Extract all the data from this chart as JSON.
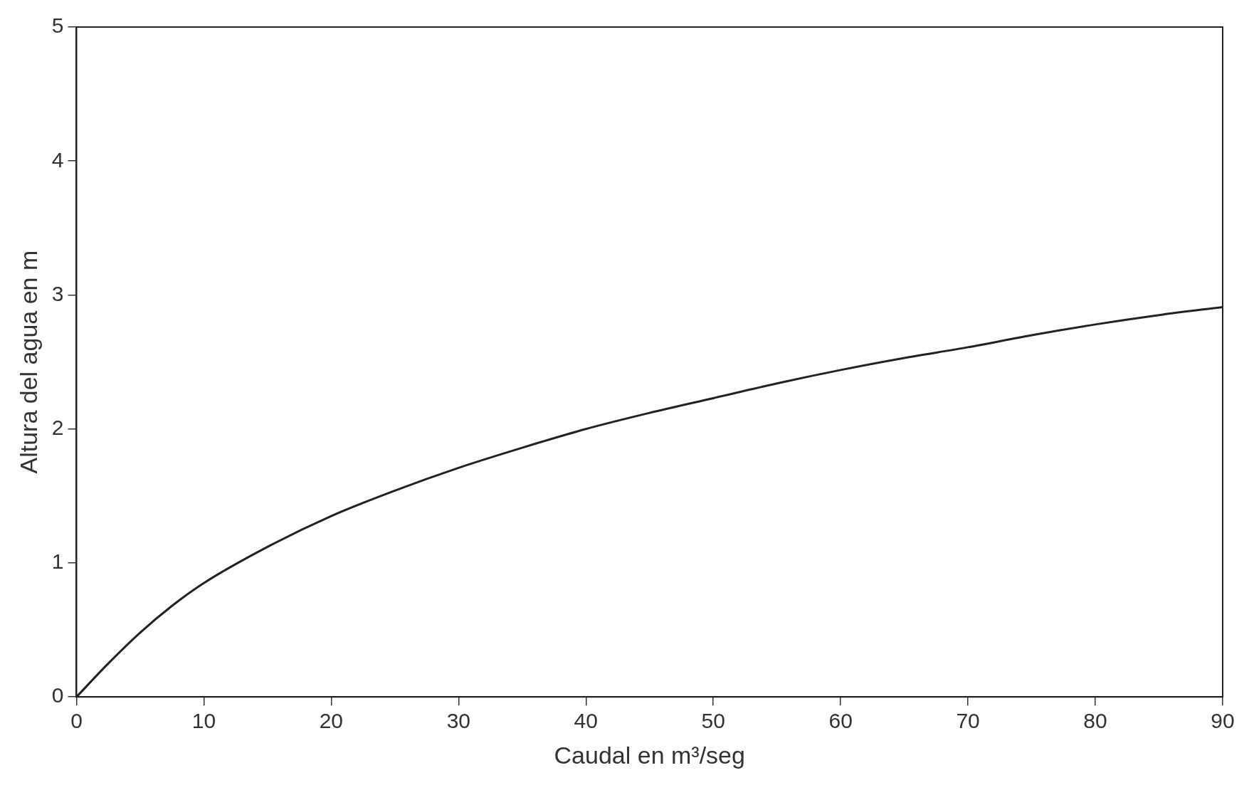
{
  "chart_data": {
    "type": "line",
    "xlabel": "Caudal en m³/seg",
    "ylabel": "Altura del agua en m",
    "x": [
      0,
      2.5,
      5,
      7.5,
      10,
      15,
      20,
      25,
      30,
      35,
      40,
      45,
      50,
      55,
      60,
      65,
      70,
      75,
      80,
      85,
      90
    ],
    "series": [
      {
        "color": "#222222",
        "values": [
          0,
          0.25,
          0.48,
          0.68,
          0.85,
          1.12,
          1.35,
          1.54,
          1.71,
          1.86,
          2.0,
          2.12,
          2.23,
          2.34,
          2.44,
          2.53,
          2.61,
          2.7,
          2.78,
          2.85,
          2.91
        ]
      }
    ],
    "xlim": [
      0,
      90
    ],
    "xticks": [
      0,
      10,
      20,
      30,
      40,
      50,
      60,
      70,
      80,
      90
    ],
    "ylim": [
      0,
      5
    ],
    "yticks": [
      0,
      1,
      2,
      3,
      4,
      5
    ],
    "grid": false,
    "legend": false,
    "marker": "none",
    "line_style": "solid"
  }
}
